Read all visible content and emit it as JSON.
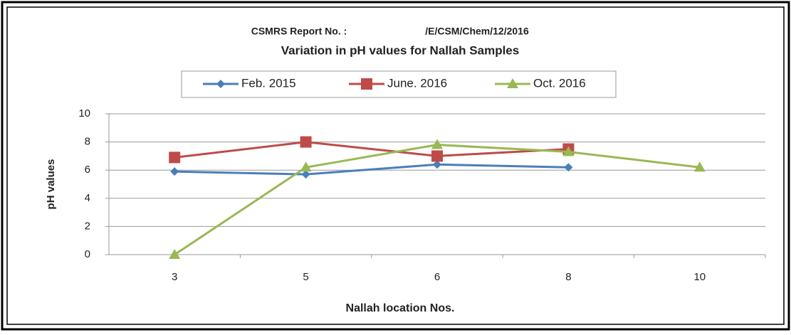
{
  "chart_data": {
    "type": "line",
    "report_label": "CSMRS Report No. :",
    "report_no": "/E/CSM/Chem/12/2016",
    "title": "Variation in pH values for  Nallah Samples",
    "x_label": "Nallah location Nos.",
    "y_label": "pH values",
    "categories": [
      "3",
      "5",
      "6",
      "8",
      "10"
    ],
    "series": [
      {
        "name": "Feb. 2015",
        "color": "#4a7ebb",
        "marker": "diamond",
        "values": [
          5.9,
          5.7,
          6.4,
          6.2,
          null
        ]
      },
      {
        "name": "June. 2016",
        "color": "#be4b48",
        "marker": "square",
        "values": [
          6.9,
          8.0,
          7.0,
          7.5,
          null
        ]
      },
      {
        "name": "Oct. 2016",
        "color": "#98b954",
        "marker": "triangle",
        "values": [
          0,
          6.2,
          7.8,
          7.3,
          6.2
        ]
      }
    ],
    "ylim": [
      0,
      10
    ],
    "yticks": [
      0,
      2,
      4,
      6,
      8,
      10
    ],
    "grid": true,
    "legend": "top"
  }
}
